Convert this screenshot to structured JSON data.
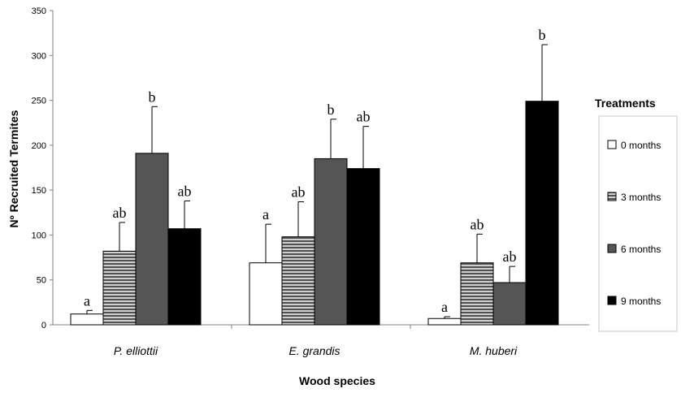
{
  "chart_data": {
    "type": "bar",
    "xlabel": "Wood species",
    "ylabel": "Nº Recruited Termites",
    "ylim": [
      0,
      350
    ],
    "yticks": [
      0,
      50,
      100,
      150,
      200,
      250,
      300,
      350
    ],
    "categories": [
      "P. elliottii",
      "E. grandis",
      "M. huberi"
    ],
    "legend_title": "Treatments",
    "legend_position": "right",
    "grid": false,
    "series": [
      {
        "name": "0 months",
        "color": "#ffffff",
        "pattern": "solid",
        "values": [
          12,
          69,
          7
        ],
        "errors": [
          4,
          43,
          2
        ],
        "labels": [
          "a",
          "a",
          "a"
        ]
      },
      {
        "name": "3 months",
        "color": "#8a8a8a",
        "pattern": "striped",
        "values": [
          82,
          98,
          69
        ],
        "errors": [
          32,
          39,
          32
        ],
        "labels": [
          "ab",
          "ab",
          "ab"
        ]
      },
      {
        "name": "6 months",
        "color": "#555555",
        "pattern": "solid",
        "values": [
          191,
          185,
          47
        ],
        "errors": [
          52,
          44,
          18
        ],
        "labels": [
          "b",
          "b",
          "ab"
        ]
      },
      {
        "name": "9 months",
        "color": "#000000",
        "pattern": "solid",
        "values": [
          107,
          174,
          249
        ],
        "errors": [
          31,
          47,
          63
        ],
        "labels": [
          "ab",
          "ab",
          "b"
        ]
      }
    ]
  }
}
